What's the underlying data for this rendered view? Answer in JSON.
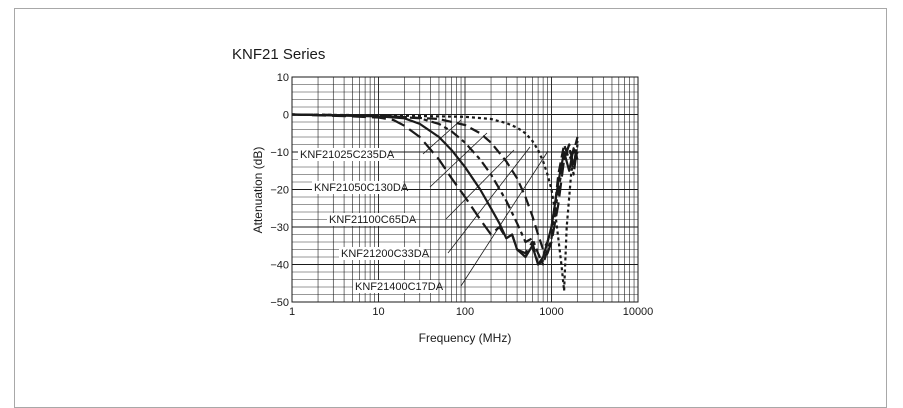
{
  "chart_data": {
    "type": "line",
    "title": "KNF21 Series",
    "xlabel": "Frequency (MHz)",
    "ylabel": "Attenuation (dB)",
    "xscale": "log",
    "xlim": [
      1,
      10000
    ],
    "ylim": [
      -50,
      10
    ],
    "xticks": [
      "1",
      "10",
      "100",
      "1000",
      "10000"
    ],
    "yticks": [
      "10",
      "0",
      "−10",
      "−20",
      "−30",
      "−40",
      "−50"
    ],
    "grid": true,
    "series": [
      {
        "name": "KNF21025C235DA",
        "dash": "14 6",
        "x": [
          1,
          5,
          10,
          15,
          20,
          30,
          50,
          70,
          100,
          150,
          200,
          250,
          300,
          350,
          400,
          500,
          600,
          700,
          800,
          900,
          1000,
          1200,
          1400,
          1600,
          1800,
          2000
        ],
        "y": [
          0,
          -0.5,
          -0.8,
          -1.5,
          -3,
          -6,
          -12,
          -17,
          -22,
          -28,
          -32,
          -30,
          -33,
          -32,
          -36,
          -37,
          -34,
          -40,
          -39,
          -37,
          -34,
          -24,
          -12,
          -8,
          -14,
          -7
        ]
      },
      {
        "name": "KNF21050C130DA",
        "dash": "",
        "x": [
          1,
          10,
          20,
          30,
          50,
          70,
          100,
          150,
          200,
          250,
          300,
          350,
          400,
          500,
          600,
          700,
          800,
          900,
          1000,
          1200,
          1400,
          1600,
          1800,
          2000
        ],
        "y": [
          0,
          -0.5,
          -1,
          -2.5,
          -6,
          -9.5,
          -14,
          -20,
          -25,
          -29,
          -33,
          -32,
          -36,
          -38,
          -35,
          -40,
          -38,
          -34,
          -30,
          -18,
          -10,
          -15,
          -9,
          -12
        ]
      },
      {
        "name": "KNF21100C65DA",
        "dash": "4 4 10 4",
        "x": [
          1,
          10,
          30,
          50,
          70,
          100,
          150,
          200,
          300,
          400,
          500,
          600,
          700,
          800,
          900,
          1000,
          1200,
          1400,
          1600,
          1800,
          2000
        ],
        "y": [
          0,
          -0.3,
          -1,
          -2.5,
          -4.5,
          -7.5,
          -12,
          -16,
          -23,
          -29,
          -34,
          -33,
          -37,
          -40,
          -36,
          -33,
          -20,
          -12,
          -8,
          -16,
          -8
        ]
      },
      {
        "name": "KNF21200C33DA",
        "dash": "10 5",
        "x": [
          1,
          10,
          50,
          100,
          150,
          200,
          300,
          400,
          500,
          600,
          700,
          800,
          900,
          1000,
          1100,
          1200,
          1400,
          1600,
          1800,
          2000
        ],
        "y": [
          0,
          -0.3,
          -1.2,
          -2.8,
          -5,
          -7.5,
          -12.5,
          -17,
          -22,
          -27,
          -32,
          -36,
          -34,
          -30,
          -24,
          -16,
          -8,
          -12,
          -10,
          -6
        ]
      },
      {
        "name": "KNF21400C17DA",
        "dash": "3 3",
        "x": [
          1,
          10,
          100,
          200,
          300,
          400,
          500,
          600,
          700,
          800,
          900,
          1000,
          1100,
          1200,
          1300,
          1400,
          1500,
          1700,
          2000
        ],
        "y": [
          0,
          -0.2,
          -0.6,
          -1.2,
          -2.3,
          -3.5,
          -5,
          -7,
          -9.5,
          -12.5,
          -16,
          -20,
          -26,
          -33,
          -40,
          -47,
          -30,
          -15,
          -10
        ]
      }
    ]
  }
}
